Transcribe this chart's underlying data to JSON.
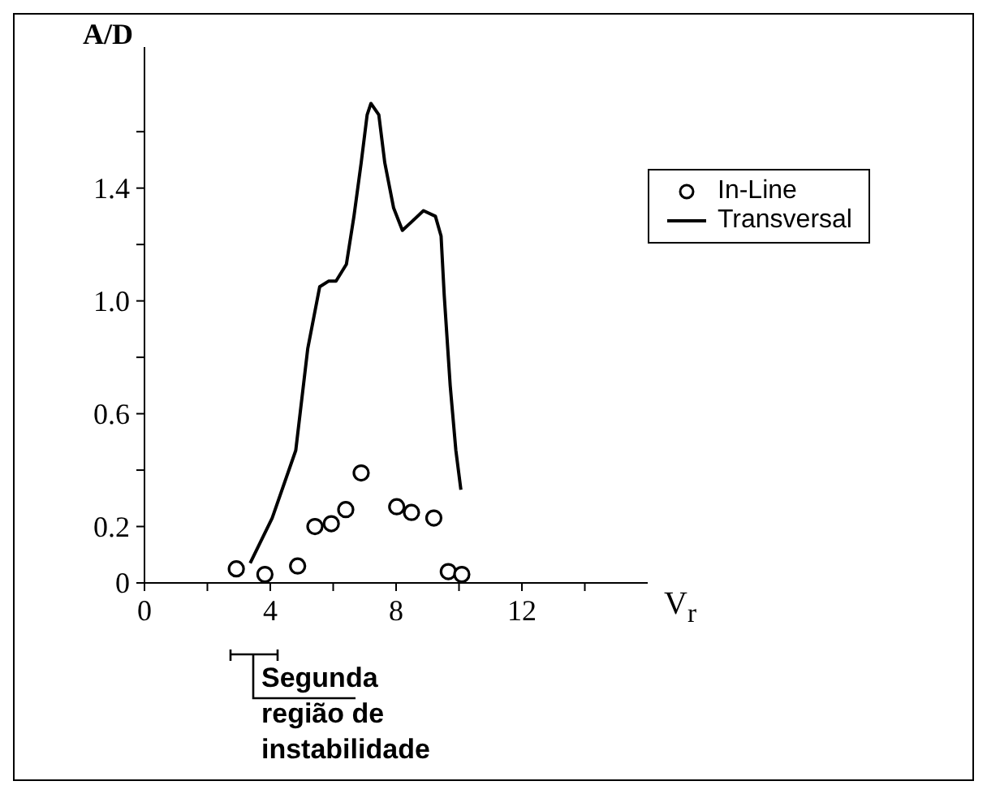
{
  "chart_data": {
    "type": "line",
    "xlabel": "V$_{r}$",
    "ylabel": "A/D",
    "xlim": [
      0,
      16
    ],
    "ylim": [
      0,
      1.9
    ],
    "xticks": [
      0,
      {
        "value": 2,
        "label": null
      },
      4,
      {
        "value": 6,
        "label": null
      },
      8,
      {
        "value": 10,
        "label": null
      },
      12,
      {
        "value": 14,
        "label": null
      }
    ],
    "yticks": [
      0,
      0.2,
      {
        "value": 0.4,
        "label": null
      },
      0.6,
      {
        "value": 0.8,
        "label": null
      },
      {
        "value": 1,
        "label": "1.0"
      },
      {
        "value": 1.2,
        "label": null
      },
      1.4,
      {
        "value": 1.6,
        "label": null
      }
    ],
    "grid": false,
    "legend": "right",
    "series": [
      {
        "name": "In-Line",
        "type": "scatter",
        "marker": "circle",
        "color": "#000000",
        "x": [
          2.92,
          3.83,
          4.87,
          5.42,
          5.94,
          6.4,
          6.89,
          8.02,
          8.49,
          9.2,
          9.66,
          10.09
        ],
        "values": [
          0.05,
          0.03,
          0.06,
          0.2,
          0.21,
          0.26,
          0.39,
          0.27,
          0.25,
          0.23,
          0.04,
          0.03
        ]
      },
      {
        "name": "Transversal",
        "type": "line",
        "marker": "none",
        "color": "#000000",
        "x": [
          3.36,
          4.06,
          4.81,
          5.19,
          5.57,
          5.85,
          6.09,
          6.42,
          6.66,
          6.89,
          7.08,
          7.2,
          7.45,
          7.64,
          7.92,
          8.2,
          8.49,
          8.87,
          9.25,
          9.43,
          9.53,
          9.72,
          9.9,
          10.06
        ],
        "values": [
          0.07,
          0.23,
          0.47,
          0.83,
          1.05,
          1.07,
          1.07,
          1.13,
          1.3,
          1.49,
          1.66,
          1.7,
          1.66,
          1.49,
          1.33,
          1.25,
          1.28,
          1.32,
          1.3,
          1.23,
          1.02,
          0.7,
          0.47,
          0.33
        ]
      }
    ],
    "annotations": [
      "Segunda região de instabilidade"
    ]
  }
}
